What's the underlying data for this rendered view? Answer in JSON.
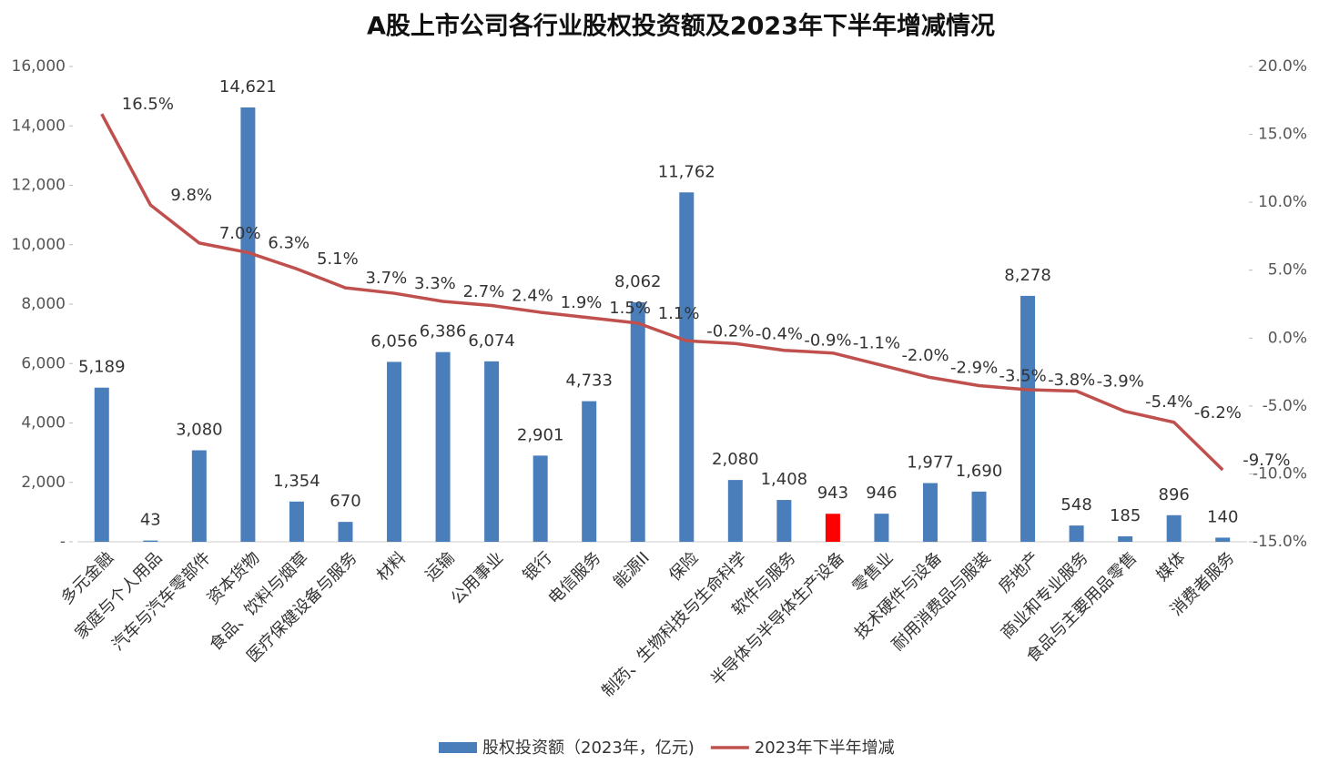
{
  "chart_data": {
    "type": "bar-line",
    "title": "A股上市公司各行业股权投资额及2023年下半年增减情况",
    "categories": [
      "多元金融",
      "家庭与个人用品",
      "汽车与汽车零部件",
      "资本货物",
      "食品、饮料与烟草",
      "医疗保健设备与服务",
      "材料",
      "运输",
      "公用事业",
      "银行",
      "电信服务",
      "能源II",
      "保险",
      "制药、生物科技与生命科学",
      "软件与服务",
      "半导体与半导体生产设备",
      "零售业",
      "技术硬件与设备",
      "耐用消费品与服装",
      "房地产",
      "商业和专业服务",
      "食品与主要用品零售",
      "媒体",
      "消费者服务"
    ],
    "series": [
      {
        "name": "股权投资额（2023年，亿元)",
        "type": "bar",
        "color": "#4a7ebb",
        "point_colors": [
          "#4a7ebb",
          "#4a7ebb",
          "#4a7ebb",
          "#4a7ebb",
          "#4a7ebb",
          "#4a7ebb",
          "#4a7ebb",
          "#4a7ebb",
          "#4a7ebb",
          "#4a7ebb",
          "#4a7ebb",
          "#4a7ebb",
          "#4a7ebb",
          "#4a7ebb",
          "#4a7ebb",
          "#ff0000",
          "#4a7ebb",
          "#4a7ebb",
          "#4a7ebb",
          "#4a7ebb",
          "#4a7ebb",
          "#4a7ebb",
          "#4a7ebb",
          "#4a7ebb"
        ],
        "values": [
          5189,
          43,
          3080,
          14621,
          1354,
          670,
          6056,
          6386,
          6074,
          2901,
          4733,
          8062,
          11762,
          2080,
          1408,
          943,
          946,
          1977,
          1690,
          8278,
          548,
          185,
          896,
          140
        ],
        "value_labels": [
          "5,189",
          "43",
          "3,080",
          "14,621",
          "1,354",
          "670",
          "6,056",
          "6,386",
          "6,074",
          "2,901",
          "4,733",
          "8,062",
          "11,762",
          "2,080",
          "1,408",
          "943",
          "946",
          "1,977",
          "1,690",
          "8,278",
          "548",
          "185",
          "896",
          "140"
        ]
      },
      {
        "name": "2023年下半年增减",
        "type": "line",
        "axis": "y2",
        "color": "#c0504d",
        "values": [
          16.5,
          9.8,
          7.0,
          6.3,
          5.1,
          3.7,
          3.3,
          2.7,
          2.4,
          1.9,
          1.5,
          1.1,
          -0.2,
          -0.4,
          -0.9,
          -1.1,
          -2.0,
          -2.9,
          -3.5,
          -3.8,
          -3.9,
          -5.4,
          -6.2,
          -9.7
        ],
        "value_labels": [
          "16.5%",
          "9.8%",
          "7.0%",
          "6.3%",
          "5.1%",
          "3.7%",
          "3.3%",
          "2.7%",
          "2.4%",
          "1.9%",
          "1.5%",
          "1.1%",
          "-0.2%",
          "-0.4%",
          "-0.9%",
          "-1.1%",
          "-2.0%",
          "-2.9%",
          "-3.5%",
          "-3.8%",
          "-3.9%",
          "-5.4%",
          "-6.2%",
          "-9.7%"
        ]
      }
    ],
    "ylim": [
      0,
      16000
    ],
    "yticks": [
      {
        "value": 0,
        "label": "-"
      },
      {
        "value": 2000,
        "label": "2,000"
      },
      {
        "value": 4000,
        "label": "4,000"
      },
      {
        "value": 6000,
        "label": "6,000"
      },
      {
        "value": 8000,
        "label": "8,000"
      },
      {
        "value": 10000,
        "label": "10,000"
      },
      {
        "value": 12000,
        "label": "12,000"
      },
      {
        "value": 14000,
        "label": "14,000"
      },
      {
        "value": 16000,
        "label": "16,000"
      }
    ],
    "y2lim": [
      -15,
      20
    ],
    "y2ticks": [
      {
        "value": -15,
        "label": "-15.0%"
      },
      {
        "value": -10,
        "label": "-10.0%"
      },
      {
        "value": -5,
        "label": "-5.0%"
      },
      {
        "value": 0,
        "label": "0.0%"
      },
      {
        "value": 5,
        "label": "5.0%"
      },
      {
        "value": 10,
        "label": "10.0%"
      },
      {
        "value": 15,
        "label": "15.0%"
      },
      {
        "value": 20,
        "label": "20.0%"
      }
    ],
    "legend": "bottom"
  }
}
